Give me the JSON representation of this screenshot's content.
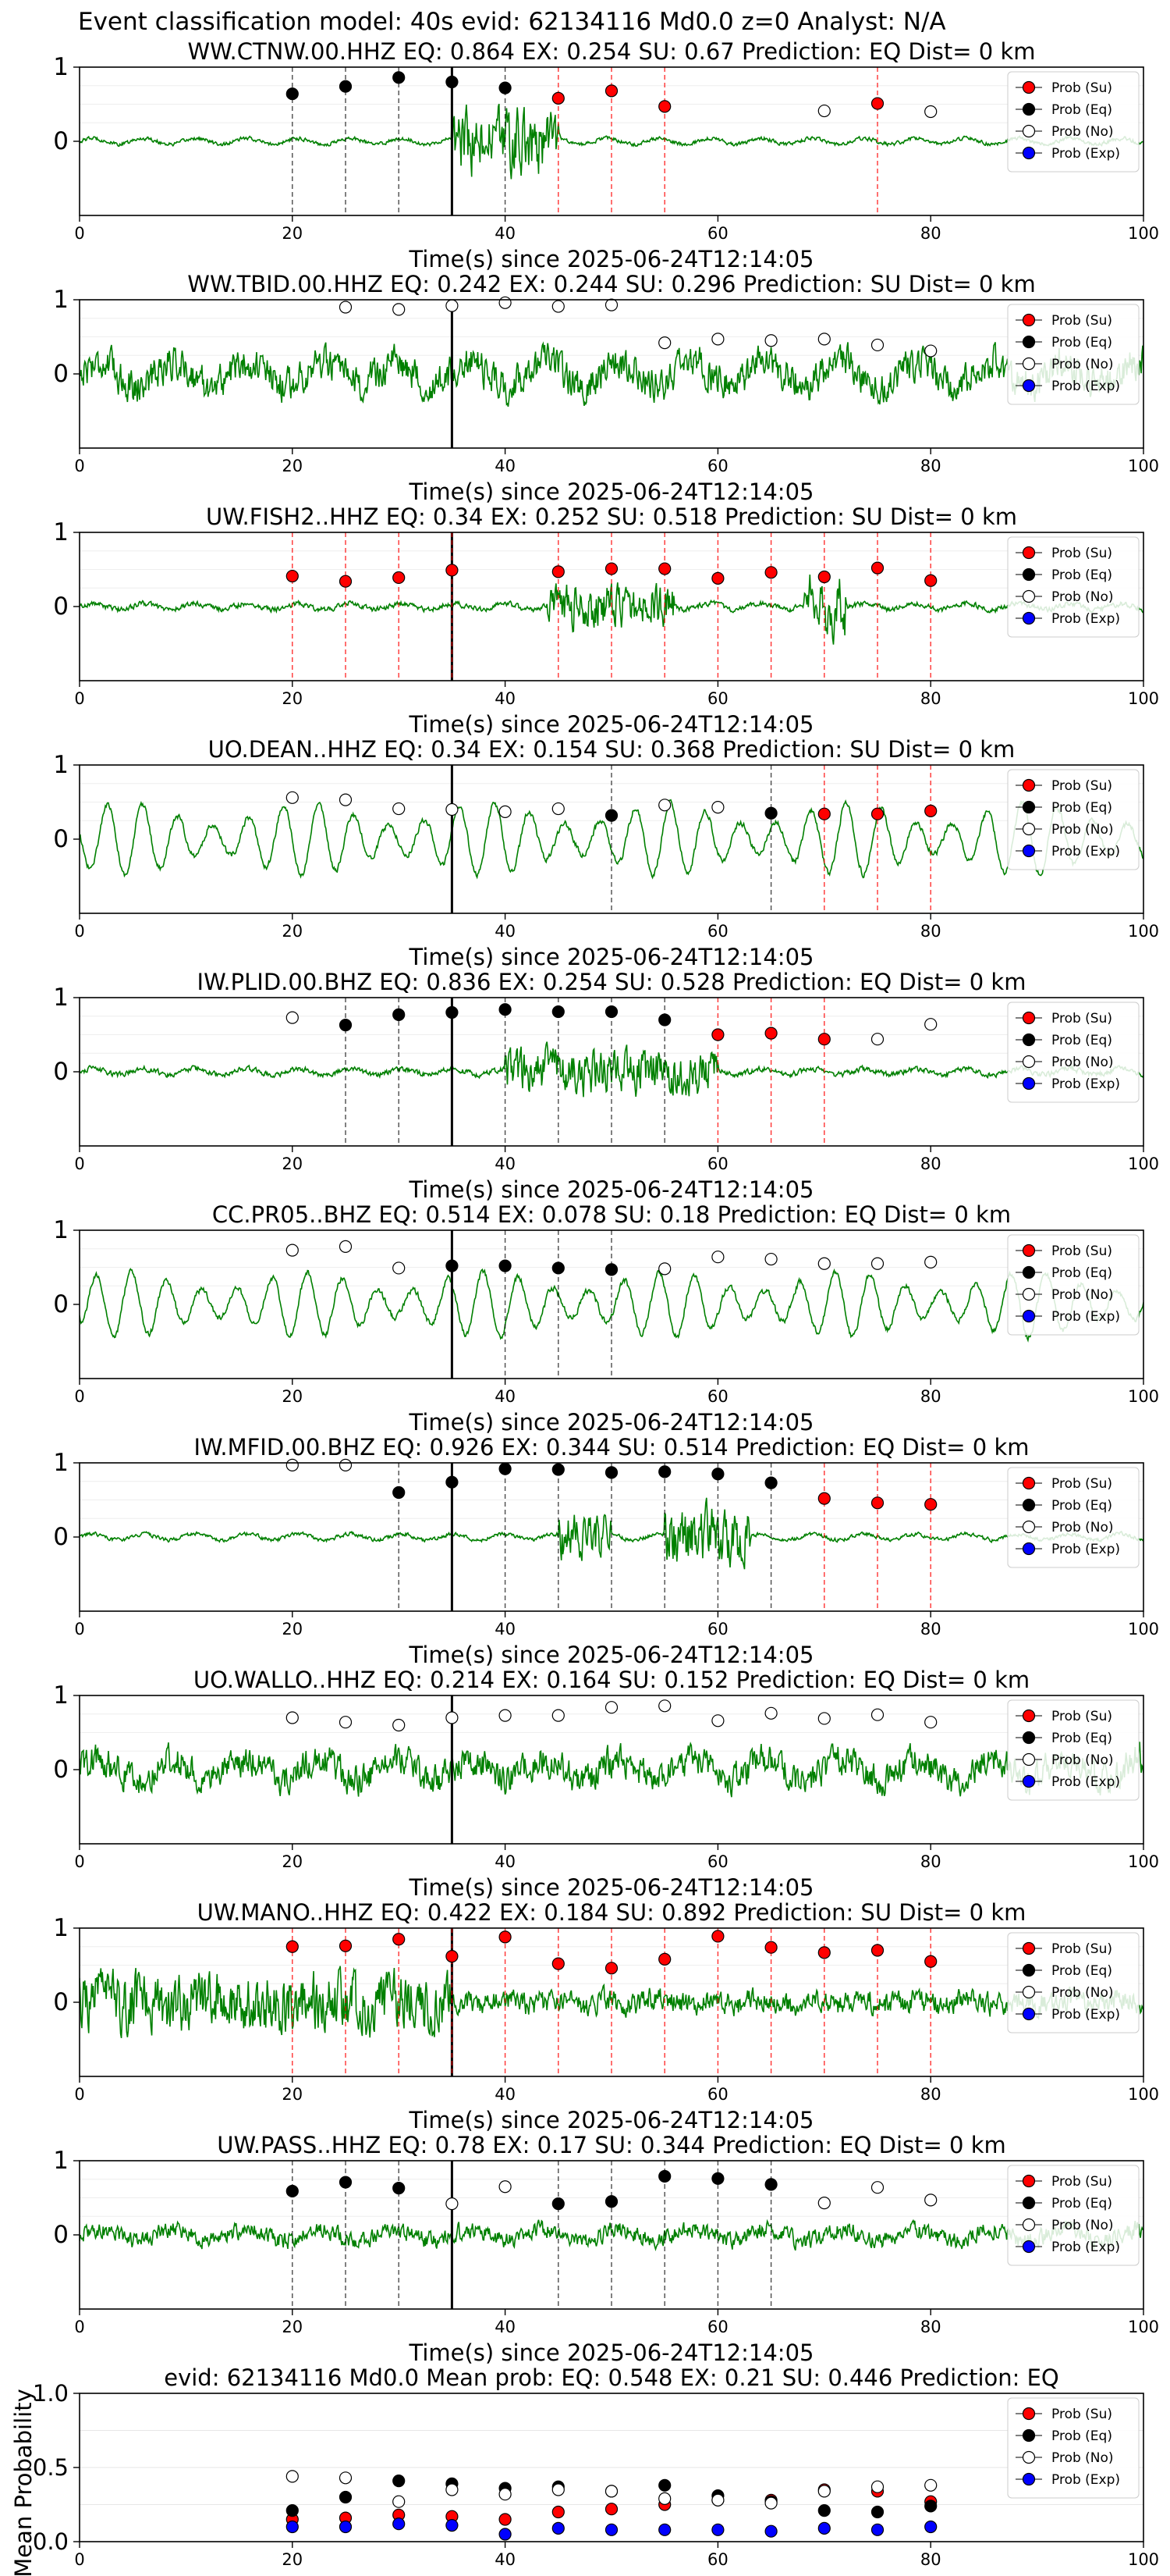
{
  "suptitle": "Event classification model: 40s evid: 62134116 Md0.0 z=0 Analyst: N/A",
  "legend_labels": [
    "Prob (Su)",
    "Prob (Eq)",
    "Prob (No)",
    "Prob (Exp)"
  ],
  "colors": {
    "su": "#ff0000",
    "eq": "#000000",
    "no": "#ffffff",
    "exp": "#0000ff",
    "waveform": "#008000",
    "su_line": "#ff0000",
    "eq_line": "#000000"
  },
  "chart_data": [
    {
      "type": "scatter",
      "title": "WW.CTNW.00.HHZ   EQ: 0.864   EX: 0.254   SU: 0.67   Prediction: EQ    Dist= 0 km",
      "xlabel": "Time(s) since 2025-06-24T12:14:05",
      "ylabel": "",
      "xlim": [
        0,
        100
      ],
      "ylim": [
        -1,
        1
      ],
      "xticks": [
        "0",
        "20",
        "40",
        "60",
        "80",
        "100"
      ],
      "yticks": [
        "0",
        "1"
      ],
      "pick": 35,
      "legend": "top-right",
      "waveform_style": "burst",
      "wave_amp": 0.05,
      "burst": [
        35,
        45,
        0.8
      ],
      "points": [
        {
          "x": 20,
          "y": 0.64,
          "c": "eq"
        },
        {
          "x": 25,
          "y": 0.74,
          "c": "eq"
        },
        {
          "x": 30,
          "y": 0.86,
          "c": "eq"
        },
        {
          "x": 35,
          "y": 0.8,
          "c": "eq"
        },
        {
          "x": 40,
          "y": 0.72,
          "c": "eq"
        },
        {
          "x": 45,
          "y": 0.58,
          "c": "su"
        },
        {
          "x": 50,
          "y": 0.68,
          "c": "su"
        },
        {
          "x": 55,
          "y": 0.47,
          "c": "su"
        },
        {
          "x": 70,
          "y": 0.41,
          "c": "no"
        },
        {
          "x": 75,
          "y": 0.51,
          "c": "su"
        },
        {
          "x": 80,
          "y": 0.4,
          "c": "no"
        }
      ]
    },
    {
      "type": "scatter",
      "title": "WW.TBID.00.HHZ   EQ: 0.242   EX: 0.244   SU: 0.296   Prediction: SU    Dist= 0 km",
      "xlabel": "Time(s) since 2025-06-24T12:14:05",
      "ylabel": "",
      "xlim": [
        0,
        100
      ],
      "ylim": [
        -1,
        1
      ],
      "xticks": [
        "0",
        "20",
        "40",
        "60",
        "80",
        "100"
      ],
      "yticks": [
        "0",
        "1"
      ],
      "pick": 35,
      "legend": "top-right",
      "waveform_style": "noise",
      "wave_amp": 0.45,
      "points": [
        {
          "x": 25,
          "y": 0.9,
          "c": "no"
        },
        {
          "x": 30,
          "y": 0.87,
          "c": "no"
        },
        {
          "x": 35,
          "y": 0.92,
          "c": "no"
        },
        {
          "x": 40,
          "y": 0.96,
          "c": "no"
        },
        {
          "x": 45,
          "y": 0.91,
          "c": "no"
        },
        {
          "x": 50,
          "y": 0.93,
          "c": "no"
        },
        {
          "x": 55,
          "y": 0.42,
          "c": "no"
        },
        {
          "x": 60,
          "y": 0.47,
          "c": "no"
        },
        {
          "x": 65,
          "y": 0.45,
          "c": "no"
        },
        {
          "x": 70,
          "y": 0.47,
          "c": "no"
        },
        {
          "x": 75,
          "y": 0.39,
          "c": "no"
        },
        {
          "x": 80,
          "y": 0.31,
          "c": "no"
        }
      ]
    },
    {
      "type": "scatter",
      "title": "UW.FISH2..HHZ   EQ: 0.34   EX: 0.252   SU: 0.518   Prediction: SU    Dist= 0 km",
      "xlabel": "Time(s) since 2025-06-24T12:14:05",
      "ylabel": "",
      "xlim": [
        0,
        100
      ],
      "ylim": [
        -1,
        1
      ],
      "xticks": [
        "0",
        "20",
        "40",
        "60",
        "80",
        "100"
      ],
      "yticks": [
        "0",
        "1"
      ],
      "pick": 35,
      "legend": "top-right",
      "waveform_style": "bursts",
      "wave_amp": 0.07,
      "burst": [
        44,
        56,
        0.55
      ],
      "burst2": [
        68,
        72,
        0.8
      ],
      "points": [
        {
          "x": 20,
          "y": 0.41,
          "c": "su"
        },
        {
          "x": 25,
          "y": 0.34,
          "c": "su"
        },
        {
          "x": 30,
          "y": 0.39,
          "c": "su"
        },
        {
          "x": 35,
          "y": 0.49,
          "c": "su"
        },
        {
          "x": 45,
          "y": 0.47,
          "c": "su"
        },
        {
          "x": 50,
          "y": 0.51,
          "c": "su"
        },
        {
          "x": 55,
          "y": 0.51,
          "c": "su"
        },
        {
          "x": 60,
          "y": 0.38,
          "c": "su"
        },
        {
          "x": 65,
          "y": 0.46,
          "c": "su"
        },
        {
          "x": 70,
          "y": 0.4,
          "c": "su"
        },
        {
          "x": 75,
          "y": 0.52,
          "c": "su"
        },
        {
          "x": 80,
          "y": 0.35,
          "c": "su"
        }
      ]
    },
    {
      "type": "scatter",
      "title": "UO.DEAN..HHZ   EQ: 0.34   EX: 0.154   SU: 0.368   Prediction: SU    Dist= 0 km",
      "xlabel": "Time(s) since 2025-06-24T12:14:05",
      "ylabel": "",
      "xlim": [
        0,
        100
      ],
      "ylim": [
        -1,
        1
      ],
      "xticks": [
        "0",
        "20",
        "40",
        "60",
        "80",
        "100"
      ],
      "yticks": [
        "0",
        "1"
      ],
      "pick": 35,
      "legend": "top-right",
      "waveform_style": "wavy",
      "wave_amp": 0.5,
      "points": [
        {
          "x": 20,
          "y": 0.56,
          "c": "no"
        },
        {
          "x": 25,
          "y": 0.53,
          "c": "no"
        },
        {
          "x": 30,
          "y": 0.41,
          "c": "no"
        },
        {
          "x": 35,
          "y": 0.4,
          "c": "no"
        },
        {
          "x": 40,
          "y": 0.37,
          "c": "no"
        },
        {
          "x": 45,
          "y": 0.41,
          "c": "no"
        },
        {
          "x": 50,
          "y": 0.32,
          "c": "eq"
        },
        {
          "x": 55,
          "y": 0.46,
          "c": "no"
        },
        {
          "x": 60,
          "y": 0.43,
          "c": "no"
        },
        {
          "x": 65,
          "y": 0.35,
          "c": "eq"
        },
        {
          "x": 70,
          "y": 0.34,
          "c": "su"
        },
        {
          "x": 75,
          "y": 0.34,
          "c": "su"
        },
        {
          "x": 80,
          "y": 0.38,
          "c": "su"
        }
      ]
    },
    {
      "type": "scatter",
      "title": "IW.PLID.00.BHZ   EQ: 0.836   EX: 0.254   SU: 0.528   Prediction: EQ    Dist= 0 km",
      "xlabel": "Time(s) since 2025-06-24T12:14:05",
      "ylabel": "",
      "xlim": [
        0,
        100
      ],
      "ylim": [
        -1,
        1
      ],
      "xticks": [
        "0",
        "20",
        "40",
        "60",
        "80",
        "100"
      ],
      "yticks": [
        "0",
        "1"
      ],
      "pick": 35,
      "legend": "top-right",
      "waveform_style": "burst",
      "wave_amp": 0.07,
      "burst": [
        40,
        60,
        0.55
      ],
      "points": [
        {
          "x": 20,
          "y": 0.73,
          "c": "no"
        },
        {
          "x": 25,
          "y": 0.63,
          "c": "eq"
        },
        {
          "x": 30,
          "y": 0.77,
          "c": "eq"
        },
        {
          "x": 35,
          "y": 0.8,
          "c": "eq"
        },
        {
          "x": 40,
          "y": 0.84,
          "c": "eq"
        },
        {
          "x": 45,
          "y": 0.81,
          "c": "eq"
        },
        {
          "x": 50,
          "y": 0.81,
          "c": "eq"
        },
        {
          "x": 55,
          "y": 0.7,
          "c": "eq"
        },
        {
          "x": 60,
          "y": 0.5,
          "c": "su"
        },
        {
          "x": 65,
          "y": 0.52,
          "c": "su"
        },
        {
          "x": 70,
          "y": 0.44,
          "c": "su"
        },
        {
          "x": 75,
          "y": 0.44,
          "c": "no"
        },
        {
          "x": 80,
          "y": 0.64,
          "c": "no"
        }
      ]
    },
    {
      "type": "scatter",
      "title": "CC.PR05..BHZ   EQ: 0.514   EX: 0.078   SU: 0.18   Prediction: EQ    Dist= 0 km",
      "xlabel": "Time(s) since 2025-06-24T12:14:05",
      "ylabel": "",
      "xlim": [
        0,
        100
      ],
      "ylim": [
        -1,
        1
      ],
      "xticks": [
        "0",
        "20",
        "40",
        "60",
        "80",
        "100"
      ],
      "yticks": [
        "0",
        "1"
      ],
      "pick": 35,
      "legend": "top-right",
      "waveform_style": "wavy",
      "wave_amp": 0.45,
      "points": [
        {
          "x": 20,
          "y": 0.73,
          "c": "no"
        },
        {
          "x": 25,
          "y": 0.78,
          "c": "no"
        },
        {
          "x": 30,
          "y": 0.49,
          "c": "no"
        },
        {
          "x": 35,
          "y": 0.52,
          "c": "eq"
        },
        {
          "x": 40,
          "y": 0.52,
          "c": "eq"
        },
        {
          "x": 45,
          "y": 0.49,
          "c": "eq"
        },
        {
          "x": 50,
          "y": 0.47,
          "c": "eq"
        },
        {
          "x": 55,
          "y": 0.48,
          "c": "no"
        },
        {
          "x": 60,
          "y": 0.64,
          "c": "no"
        },
        {
          "x": 65,
          "y": 0.61,
          "c": "no"
        },
        {
          "x": 70,
          "y": 0.55,
          "c": "no"
        },
        {
          "x": 75,
          "y": 0.55,
          "c": "no"
        },
        {
          "x": 80,
          "y": 0.57,
          "c": "no"
        }
      ]
    },
    {
      "type": "scatter",
      "title": "IW.MFID.00.BHZ   EQ: 0.926   EX: 0.344   SU: 0.514   Prediction: EQ    Dist= 0 km",
      "xlabel": "Time(s) since 2025-06-24T12:14:05",
      "ylabel": "",
      "xlim": [
        0,
        100
      ],
      "ylim": [
        -1,
        1
      ],
      "xticks": [
        "0",
        "20",
        "40",
        "60",
        "80",
        "100"
      ],
      "yticks": [
        "0",
        "1"
      ],
      "pick": 35,
      "legend": "top-right",
      "waveform_style": "bursts",
      "wave_amp": 0.05,
      "burst": [
        45,
        50,
        0.6
      ],
      "burst2": [
        55,
        63,
        0.7
      ],
      "points": [
        {
          "x": 20,
          "y": 0.97,
          "c": "no"
        },
        {
          "x": 25,
          "y": 0.97,
          "c": "no"
        },
        {
          "x": 30,
          "y": 0.6,
          "c": "eq"
        },
        {
          "x": 35,
          "y": 0.74,
          "c": "eq"
        },
        {
          "x": 40,
          "y": 0.92,
          "c": "eq"
        },
        {
          "x": 45,
          "y": 0.91,
          "c": "eq"
        },
        {
          "x": 50,
          "y": 0.87,
          "c": "eq"
        },
        {
          "x": 55,
          "y": 0.88,
          "c": "eq"
        },
        {
          "x": 60,
          "y": 0.85,
          "c": "eq"
        },
        {
          "x": 65,
          "y": 0.73,
          "c": "eq"
        },
        {
          "x": 70,
          "y": 0.52,
          "c": "su"
        },
        {
          "x": 75,
          "y": 0.46,
          "c": "su"
        },
        {
          "x": 80,
          "y": 0.44,
          "c": "su"
        }
      ]
    },
    {
      "type": "scatter",
      "title": "UO.WALLO..HHZ   EQ: 0.214   EX: 0.164   SU: 0.152   Prediction: EQ    Dist= 0 km",
      "xlabel": "Time(s) since 2025-06-24T12:14:05",
      "ylabel": "",
      "xlim": [
        0,
        100
      ],
      "ylim": [
        -1,
        1
      ],
      "xticks": [
        "0",
        "20",
        "40",
        "60",
        "80",
        "100"
      ],
      "yticks": [
        "0",
        "1"
      ],
      "pick": 35,
      "legend": "top-right",
      "waveform_style": "noise",
      "wave_amp": 0.4,
      "points": [
        {
          "x": 20,
          "y": 0.7,
          "c": "no"
        },
        {
          "x": 25,
          "y": 0.64,
          "c": "no"
        },
        {
          "x": 30,
          "y": 0.6,
          "c": "no"
        },
        {
          "x": 35,
          "y": 0.7,
          "c": "no"
        },
        {
          "x": 40,
          "y": 0.73,
          "c": "no"
        },
        {
          "x": 45,
          "y": 0.73,
          "c": "no"
        },
        {
          "x": 50,
          "y": 0.84,
          "c": "no"
        },
        {
          "x": 55,
          "y": 0.86,
          "c": "no"
        },
        {
          "x": 60,
          "y": 0.66,
          "c": "no"
        },
        {
          "x": 65,
          "y": 0.76,
          "c": "no"
        },
        {
          "x": 70,
          "y": 0.69,
          "c": "no"
        },
        {
          "x": 75,
          "y": 0.74,
          "c": "no"
        },
        {
          "x": 80,
          "y": 0.64,
          "c": "no"
        }
      ]
    },
    {
      "type": "scatter",
      "title": "UW.MANO..HHZ   EQ: 0.422   EX: 0.184   SU: 0.892   Prediction: SU    Dist= 0 km",
      "xlabel": "Time(s) since 2025-06-24T12:14:05",
      "ylabel": "",
      "xlim": [
        0,
        100
      ],
      "ylim": [
        -1,
        1
      ],
      "xticks": [
        "0",
        "20",
        "40",
        "60",
        "80",
        "100"
      ],
      "yticks": [
        "0",
        "1"
      ],
      "pick": 35,
      "legend": "top-right",
      "waveform_style": "burst",
      "wave_amp": 0.3,
      "burst": [
        0,
        35,
        0.75
      ],
      "points": [
        {
          "x": 20,
          "y": 0.75,
          "c": "su"
        },
        {
          "x": 25,
          "y": 0.76,
          "c": "su"
        },
        {
          "x": 30,
          "y": 0.85,
          "c": "su"
        },
        {
          "x": 35,
          "y": 0.62,
          "c": "su"
        },
        {
          "x": 40,
          "y": 0.88,
          "c": "su"
        },
        {
          "x": 45,
          "y": 0.52,
          "c": "su"
        },
        {
          "x": 50,
          "y": 0.46,
          "c": "su"
        },
        {
          "x": 55,
          "y": 0.58,
          "c": "su"
        },
        {
          "x": 60,
          "y": 0.89,
          "c": "su"
        },
        {
          "x": 65,
          "y": 0.74,
          "c": "su"
        },
        {
          "x": 70,
          "y": 0.67,
          "c": "su"
        },
        {
          "x": 75,
          "y": 0.7,
          "c": "su"
        },
        {
          "x": 80,
          "y": 0.55,
          "c": "su"
        }
      ]
    },
    {
      "type": "scatter",
      "title": "UW.PASS..HHZ   EQ: 0.78   EX: 0.17   SU: 0.344   Prediction: EQ    Dist= 0 km",
      "xlabel": "Time(s) since 2025-06-24T12:14:05",
      "ylabel": "",
      "xlim": [
        0,
        100
      ],
      "ylim": [
        -1,
        1
      ],
      "xticks": [
        "0",
        "20",
        "40",
        "60",
        "80",
        "100"
      ],
      "yticks": [
        "0",
        "1"
      ],
      "pick": 35,
      "legend": "top-right",
      "waveform_style": "noise",
      "wave_amp": 0.22,
      "points": [
        {
          "x": 20,
          "y": 0.59,
          "c": "eq"
        },
        {
          "x": 25,
          "y": 0.71,
          "c": "eq"
        },
        {
          "x": 30,
          "y": 0.63,
          "c": "eq"
        },
        {
          "x": 35,
          "y": 0.42,
          "c": "no"
        },
        {
          "x": 40,
          "y": 0.65,
          "c": "no"
        },
        {
          "x": 45,
          "y": 0.42,
          "c": "eq"
        },
        {
          "x": 50,
          "y": 0.45,
          "c": "eq"
        },
        {
          "x": 55,
          "y": 0.79,
          "c": "eq"
        },
        {
          "x": 60,
          "y": 0.76,
          "c": "eq"
        },
        {
          "x": 65,
          "y": 0.68,
          "c": "eq"
        },
        {
          "x": 70,
          "y": 0.43,
          "c": "no"
        },
        {
          "x": 75,
          "y": 0.64,
          "c": "no"
        },
        {
          "x": 80,
          "y": 0.47,
          "c": "no"
        }
      ]
    },
    {
      "type": "scatter",
      "title": "evid: 62134116  Md0.0   Mean prob:    EQ: 0.548  EX: 0.21  SU: 0.446   Prediction: EQ",
      "xlabel": "",
      "ylabel": "Mean Probability",
      "xlim": [
        0,
        100
      ],
      "ylim": [
        0,
        1
      ],
      "xticks": [
        "0",
        "20",
        "40",
        "60",
        "80",
        "100"
      ],
      "yticks": [
        "0.0",
        "0.5",
        "1.0"
      ],
      "legend": "top-right",
      "series": [
        {
          "name": "Prob (Su)",
          "c": "su",
          "x": [
            20,
            25,
            30,
            35,
            40,
            45,
            50,
            55,
            60,
            65,
            70,
            75,
            80
          ],
          "y": [
            0.15,
            0.16,
            0.18,
            0.17,
            0.15,
            0.2,
            0.22,
            0.25,
            0.28,
            0.28,
            0.35,
            0.34,
            0.27
          ]
        },
        {
          "name": "Prob (Eq)",
          "c": "eq",
          "x": [
            20,
            25,
            30,
            35,
            40,
            45,
            50,
            55,
            60,
            65,
            70,
            75,
            80
          ],
          "y": [
            0.21,
            0.3,
            0.41,
            0.39,
            0.36,
            0.37,
            0.34,
            0.38,
            0.31,
            0.27,
            0.21,
            0.2,
            0.24
          ]
        },
        {
          "name": "Prob (No)",
          "c": "no",
          "x": [
            20,
            25,
            30,
            35,
            40,
            45,
            50,
            55,
            60,
            65,
            70,
            75,
            80
          ],
          "y": [
            0.44,
            0.43,
            0.27,
            0.35,
            0.32,
            0.35,
            0.34,
            0.29,
            0.28,
            0.26,
            0.34,
            0.37,
            0.38
          ]
        },
        {
          "name": "Prob (Exp)",
          "c": "exp",
          "x": [
            20,
            25,
            30,
            35,
            40,
            45,
            50,
            55,
            60,
            65,
            70,
            75,
            80
          ],
          "y": [
            0.1,
            0.1,
            0.12,
            0.11,
            0.05,
            0.09,
            0.08,
            0.08,
            0.08,
            0.07,
            0.09,
            0.08,
            0.1
          ]
        }
      ]
    }
  ]
}
